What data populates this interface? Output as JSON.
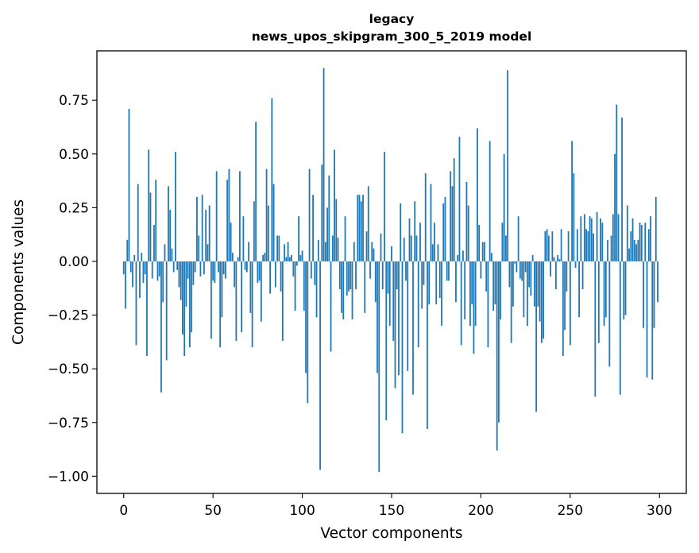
{
  "chart_data": {
    "type": "bar",
    "title_line1": "legacy",
    "title_line2": "news_upos_skipgram_300_5_2019 model",
    "xlabel": "Vector components",
    "ylabel": "Components values",
    "xlim": [
      -15,
      315
    ],
    "ylim": [
      -1.08,
      0.98
    ],
    "xticks": [
      0,
      50,
      100,
      150,
      200,
      250,
      300
    ],
    "xtick_labels": [
      "0",
      "50",
      "100",
      "150",
      "200",
      "250",
      "300"
    ],
    "yticks": [
      -1.0,
      -0.75,
      -0.5,
      -0.25,
      0.0,
      0.25,
      0.5,
      0.75
    ],
    "ytick_labels": [
      "−1.00",
      "−0.75",
      "−0.50",
      "−0.25",
      "0.00",
      "0.25",
      "0.50",
      "0.75"
    ],
    "bar_color": "#1f77b4",
    "values": [
      -0.06,
      -0.22,
      0.1,
      0.71,
      -0.05,
      -0.12,
      0.03,
      -0.39,
      0.36,
      -0.17,
      0.04,
      -0.1,
      -0.06,
      -0.44,
      0.52,
      0.32,
      -0.08,
      0.17,
      0.38,
      -0.09,
      -0.07,
      -0.61,
      -0.19,
      0.08,
      -0.46,
      0.35,
      0.24,
      0.06,
      -0.05,
      0.51,
      -0.04,
      -0.12,
      -0.18,
      -0.34,
      -0.44,
      -0.21,
      -0.08,
      -0.4,
      -0.33,
      -0.11,
      -0.05,
      0.3,
      0.12,
      -0.07,
      0.31,
      -0.06,
      0.24,
      0.08,
      0.26,
      -0.36,
      -0.09,
      -0.1,
      0.42,
      -0.05,
      -0.4,
      -0.26,
      -0.06,
      -0.08,
      0.38,
      0.43,
      0.18,
      0.04,
      -0.12,
      -0.37,
      0.02,
      0.42,
      -0.33,
      0.21,
      -0.04,
      -0.05,
      0.09,
      -0.24,
      -0.4,
      0.28,
      0.65,
      -0.1,
      -0.09,
      -0.28,
      0.03,
      0.04,
      0.43,
      0.26,
      -0.15,
      0.76,
      0.36,
      -0.12,
      0.12,
      0.12,
      -0.14,
      -0.37,
      0.08,
      0.02,
      0.09,
      0.02,
      0.03,
      -0.07,
      -0.23,
      -0.02,
      0.21,
      0.03,
      0.05,
      -0.23,
      -0.52,
      -0.66,
      0.43,
      -0.08,
      0.31,
      -0.11,
      -0.26,
      0.1,
      -0.97,
      0.45,
      0.9,
      0.09,
      0.25,
      0.4,
      -0.42,
      0.12,
      0.52,
      0.29,
      0.11,
      -0.13,
      -0.24,
      -0.27,
      0.21,
      -0.16,
      -0.14,
      -0.13,
      -0.27,
      0.09,
      -0.13,
      0.31,
      0.31,
      0.28,
      0.31,
      -0.24,
      0.14,
      0.35,
      -0.08,
      0.09,
      0.06,
      -0.19,
      -0.52,
      -0.98,
      0.13,
      -0.13,
      0.51,
      -0.74,
      -0.15,
      -0.3,
      0.07,
      -0.37,
      -0.59,
      -0.13,
      -0.53,
      0.27,
      -0.8,
      0.11,
      -0.09,
      -0.51,
      0.2,
      0.12,
      -0.62,
      0.28,
      0.12,
      -0.4,
      0.18,
      -0.22,
      -0.11,
      0.41,
      -0.78,
      -0.2,
      0.36,
      0.08,
      0.18,
      -0.2,
      0.08,
      -0.17,
      -0.3,
      0.27,
      0.3,
      -0.09,
      -0.09,
      0.42,
      0.35,
      0.48,
      -0.19,
      0.03,
      0.58,
      -0.39,
      0.05,
      -0.27,
      0.37,
      0.26,
      -0.3,
      -0.2,
      -0.43,
      -0.3,
      0.62,
      0.17,
      -0.08,
      0.09,
      0.09,
      -0.14,
      -0.4,
      0.56,
      0.04,
      -0.23,
      -0.2,
      -0.88,
      -0.75,
      -0.27,
      0.18,
      0.5,
      0.12,
      0.89,
      -0.12,
      -0.38,
      -0.21,
      -0.01,
      -0.05,
      0.21,
      -0.08,
      -0.09,
      -0.26,
      -0.05,
      -0.3,
      -0.12,
      -0.16,
      0.03,
      -0.21,
      -0.7,
      -0.21,
      -0.28,
      -0.38,
      -0.36,
      0.14,
      0.15,
      0.12,
      -0.07,
      0.14,
      0.02,
      -0.13,
      0.03,
      0.01,
      0.15,
      -0.44,
      -0.32,
      -0.14,
      0.14,
      -0.39,
      0.56,
      0.41,
      -0.03,
      0.15,
      -0.26,
      0.21,
      -0.13,
      0.22,
      0.15,
      0.14,
      0.21,
      0.2,
      0.13,
      -0.63,
      0.23,
      -0.38,
      0.2,
      0.18,
      -0.3,
      -0.26,
      0.1,
      -0.49,
      0.12,
      0.22,
      0.5,
      0.73,
      0.22,
      -0.62,
      0.67,
      -0.27,
      -0.25,
      0.26,
      0.06,
      0.14,
      0.2,
      0.1,
      0.08,
      0.1,
      0.18,
      0.17,
      -0.31,
      0.18,
      -0.54,
      0.15,
      0.21,
      -0.55,
      -0.31,
      0.3,
      -0.19
    ]
  }
}
